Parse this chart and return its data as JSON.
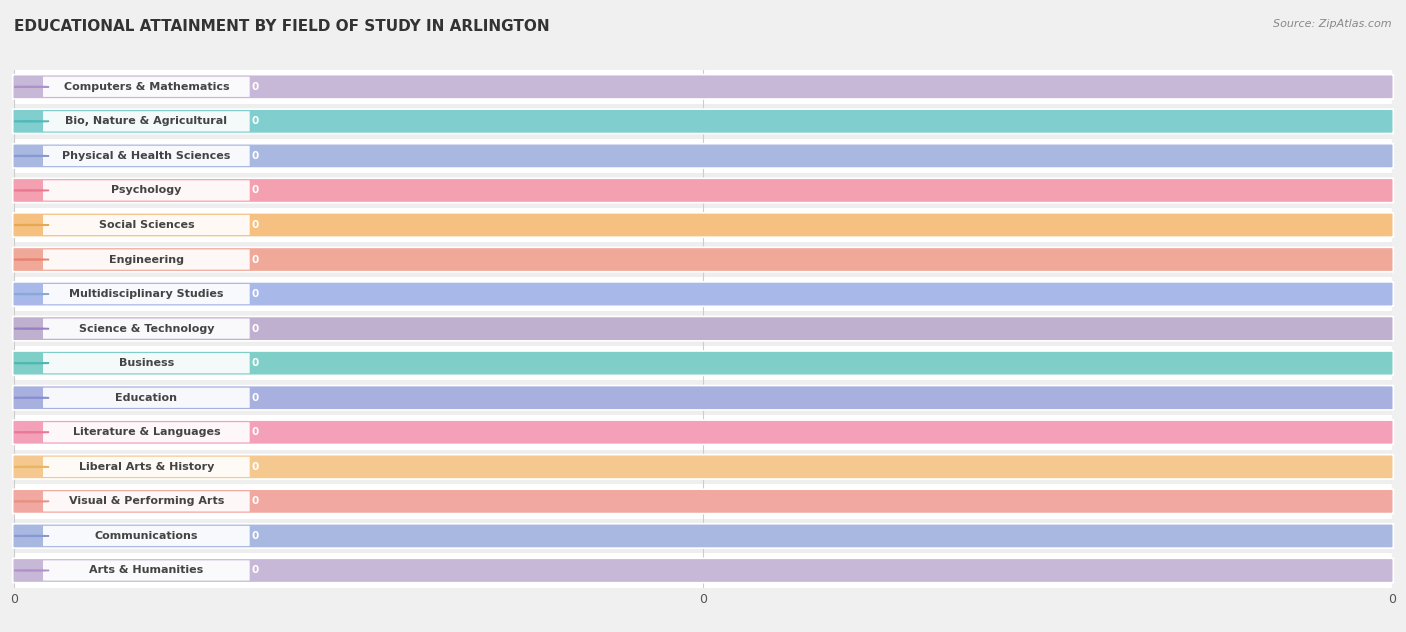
{
  "title": "EDUCATIONAL ATTAINMENT BY FIELD OF STUDY IN ARLINGTON",
  "source": "Source: ZipAtlas.com",
  "categories": [
    "Computers & Mathematics",
    "Bio, Nature & Agricultural",
    "Physical & Health Sciences",
    "Psychology",
    "Social Sciences",
    "Engineering",
    "Multidisciplinary Studies",
    "Science & Technology",
    "Business",
    "Education",
    "Literature & Languages",
    "Liberal Arts & History",
    "Visual & Performing Arts",
    "Communications",
    "Arts & Humanities"
  ],
  "values": [
    0,
    0,
    0,
    0,
    0,
    0,
    0,
    0,
    0,
    0,
    0,
    0,
    0,
    0,
    0
  ],
  "bar_colors": [
    "#c8b8d8",
    "#80cece",
    "#a8b8e0",
    "#f4a0b0",
    "#f5c080",
    "#f0a898",
    "#a8b8e8",
    "#c0b0d0",
    "#80cec8",
    "#a8b0e0",
    "#f4a0b8",
    "#f5c890",
    "#f0a8a0",
    "#a8b8e0",
    "#c8b8d8"
  ],
  "dot_colors": [
    "#b090c8",
    "#50b8b8",
    "#8898d0",
    "#e87890",
    "#e8a850",
    "#e88070",
    "#88a8d8",
    "#9880c0",
    "#50b8b0",
    "#8890d0",
    "#e87898",
    "#e8b860",
    "#e89080",
    "#8898d0",
    "#b090c8"
  ],
  "row_bg_even": "#ffffff",
  "row_bg_odd": "#eeeeee",
  "background_color": "#f0f0f0",
  "grid_color": "#cccccc",
  "title_fontsize": 11,
  "source_fontsize": 8,
  "bar_fontsize": 8,
  "value_fontsize": 7.5
}
